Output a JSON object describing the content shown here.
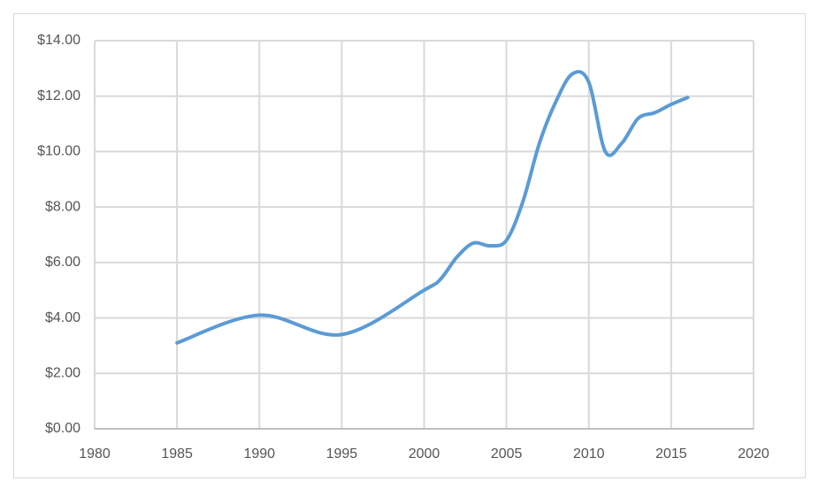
{
  "chart_data": {
    "type": "line",
    "x": [
      1985,
      1990,
      1995,
      2000,
      2001,
      2002,
      2003,
      2004,
      2005,
      2006,
      2007,
      2008,
      2009,
      2010,
      2011,
      2012,
      2013,
      2014,
      2015,
      2016
    ],
    "series": [
      {
        "color": "#5b9bd5",
        "values": [
          3.1,
          4.1,
          3.4,
          5.0,
          5.4,
          6.2,
          6.7,
          6.6,
          6.8,
          8.2,
          10.3,
          11.8,
          12.8,
          12.5,
          10.0,
          10.3,
          11.2,
          11.4,
          11.7,
          11.95
        ]
      }
    ],
    "xlim": [
      1980,
      2020
    ],
    "xticks": [
      1980,
      1985,
      1990,
      1995,
      2000,
      2005,
      2010,
      2015,
      2020
    ],
    "ylim": [
      0,
      14
    ],
    "yticks": [
      {
        "value": 0,
        "label": "$0.00"
      },
      {
        "value": 2,
        "label": "$2.00"
      },
      {
        "value": 4,
        "label": "$4.00"
      },
      {
        "value": 6,
        "label": "$6.00"
      },
      {
        "value": 8,
        "label": "$8.00"
      },
      {
        "value": 10,
        "label": "$10.00"
      },
      {
        "value": 12,
        "label": "$12.00"
      },
      {
        "value": 14,
        "label": "$14.00"
      }
    ],
    "grid": true
  }
}
